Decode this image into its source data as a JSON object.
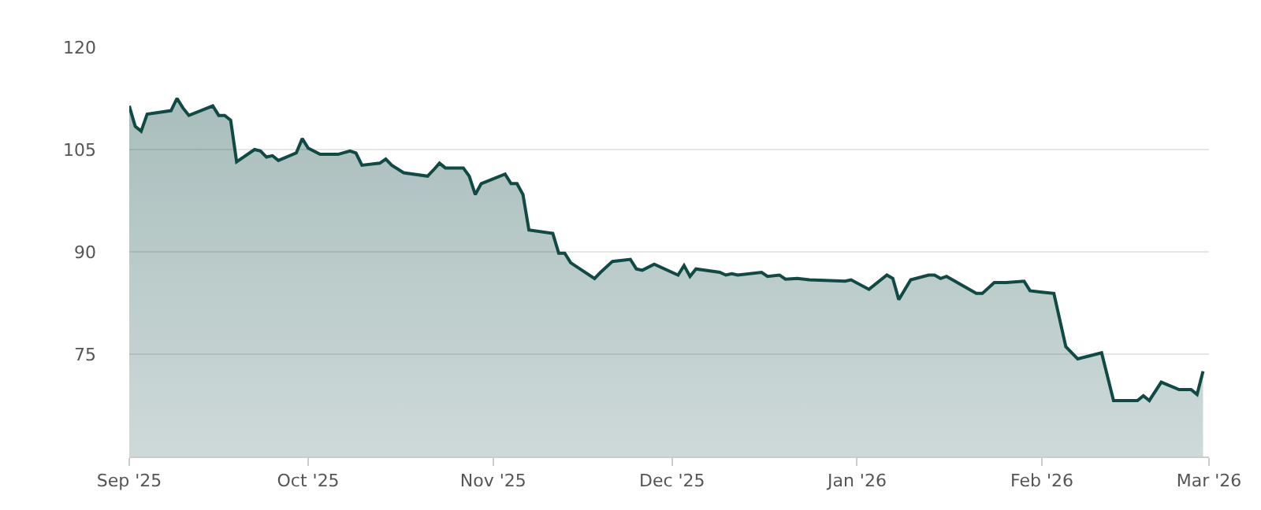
{
  "chart_data": {
    "type": "area",
    "x": [
      "2025-09-01",
      "2025-09-02",
      "2025-09-03",
      "2025-09-04",
      "2025-09-08",
      "2025-09-09",
      "2025-09-10",
      "2025-09-11",
      "2025-09-15",
      "2025-09-16",
      "2025-09-17",
      "2025-09-18",
      "2025-09-19",
      "2025-09-22",
      "2025-09-23",
      "2025-09-24",
      "2025-09-25",
      "2025-09-26",
      "2025-09-29",
      "2025-09-30",
      "2025-10-01",
      "2025-10-03",
      "2025-10-06",
      "2025-10-08",
      "2025-10-09",
      "2025-10-10",
      "2025-10-13",
      "2025-10-14",
      "2025-10-15",
      "2025-10-17",
      "2025-10-21",
      "2025-10-22",
      "2025-10-23",
      "2025-10-24",
      "2025-10-27",
      "2025-10-28",
      "2025-10-29",
      "2025-10-30",
      "2025-11-03",
      "2025-11-04",
      "2025-11-05",
      "2025-11-06",
      "2025-11-07",
      "2025-11-11",
      "2025-11-12",
      "2025-11-13",
      "2025-11-14",
      "2025-11-18",
      "2025-11-19",
      "2025-11-21",
      "2025-11-24",
      "2025-11-25",
      "2025-11-26",
      "2025-11-28",
      "2025-12-02",
      "2025-12-03",
      "2025-12-04",
      "2025-12-05",
      "2025-12-09",
      "2025-12-10",
      "2025-12-11",
      "2025-12-12",
      "2025-12-16",
      "2025-12-17",
      "2025-12-19",
      "2025-12-20",
      "2025-12-22",
      "2025-12-24",
      "2025-12-30",
      "2025-12-31",
      "2026-01-03",
      "2026-01-06",
      "2026-01-07",
      "2026-01-08",
      "2026-01-10",
      "2026-01-13",
      "2026-01-14",
      "2026-01-15",
      "2026-01-16",
      "2026-01-17",
      "2026-01-21",
      "2026-01-22",
      "2026-01-24",
      "2026-01-26",
      "2026-01-29",
      "2026-01-30",
      "2026-02-01",
      "2026-02-03",
      "2026-02-05",
      "2026-02-07",
      "2026-02-11",
      "2026-02-13",
      "2026-02-17",
      "2026-02-18",
      "2026-02-19",
      "2026-02-21",
      "2026-02-24",
      "2026-02-26",
      "2026-02-27",
      "2026-02-28"
    ],
    "series": [
      {
        "color": "#0f4a45",
        "values": [
          111.4,
          108.4,
          107.7,
          110.2,
          110.7,
          112.5,
          111.1,
          110.0,
          111.4,
          110.0,
          110.0,
          109.3,
          103.2,
          105.0,
          104.8,
          103.9,
          104.1,
          103.4,
          104.5,
          106.6,
          105.2,
          104.3,
          104.3,
          104.8,
          104.5,
          102.7,
          103.0,
          103.6,
          102.7,
          101.6,
          101.1,
          102.0,
          103.0,
          102.3,
          102.3,
          101.1,
          98.4,
          100.0,
          101.4,
          100.0,
          100.0,
          98.4,
          93.2,
          92.7,
          89.8,
          89.8,
          88.4,
          86.1,
          87.0,
          88.6,
          88.9,
          87.5,
          87.3,
          88.2,
          86.6,
          88.0,
          86.4,
          87.5,
          87.0,
          86.6,
          86.8,
          86.6,
          87.0,
          86.4,
          86.6,
          86.0,
          86.1,
          85.9,
          85.7,
          85.9,
          84.5,
          86.6,
          86.1,
          83.0,
          85.9,
          86.6,
          86.6,
          86.1,
          86.4,
          85.9,
          83.9,
          83.9,
          85.5,
          85.5,
          85.7,
          84.3,
          84.1,
          83.9,
          76.1,
          74.3,
          75.2,
          68.2,
          68.2,
          68.9,
          68.2,
          70.9,
          69.8,
          69.8,
          69.1,
          72.5
        ]
      }
    ],
    "xlim": [
      "2025-09-01",
      "2026-03-01"
    ],
    "xticks": [
      {
        "value": "2025-09-01",
        "label": "Sep '25"
      },
      {
        "value": "2025-10-01",
        "label": "Oct '25"
      },
      {
        "value": "2025-11-01",
        "label": "Nov '25"
      },
      {
        "value": "2025-12-01",
        "label": "Dec '25"
      },
      {
        "value": "2026-01-01",
        "label": "Jan '26"
      },
      {
        "value": "2026-02-01",
        "label": "Feb '26"
      },
      {
        "value": "2026-03-01",
        "label": "Mar '26"
      }
    ],
    "ylim": [
      60,
      120
    ],
    "yticks": [
      75,
      90,
      105,
      120
    ],
    "grid": "y",
    "line_style": "solid",
    "marker": "none"
  }
}
